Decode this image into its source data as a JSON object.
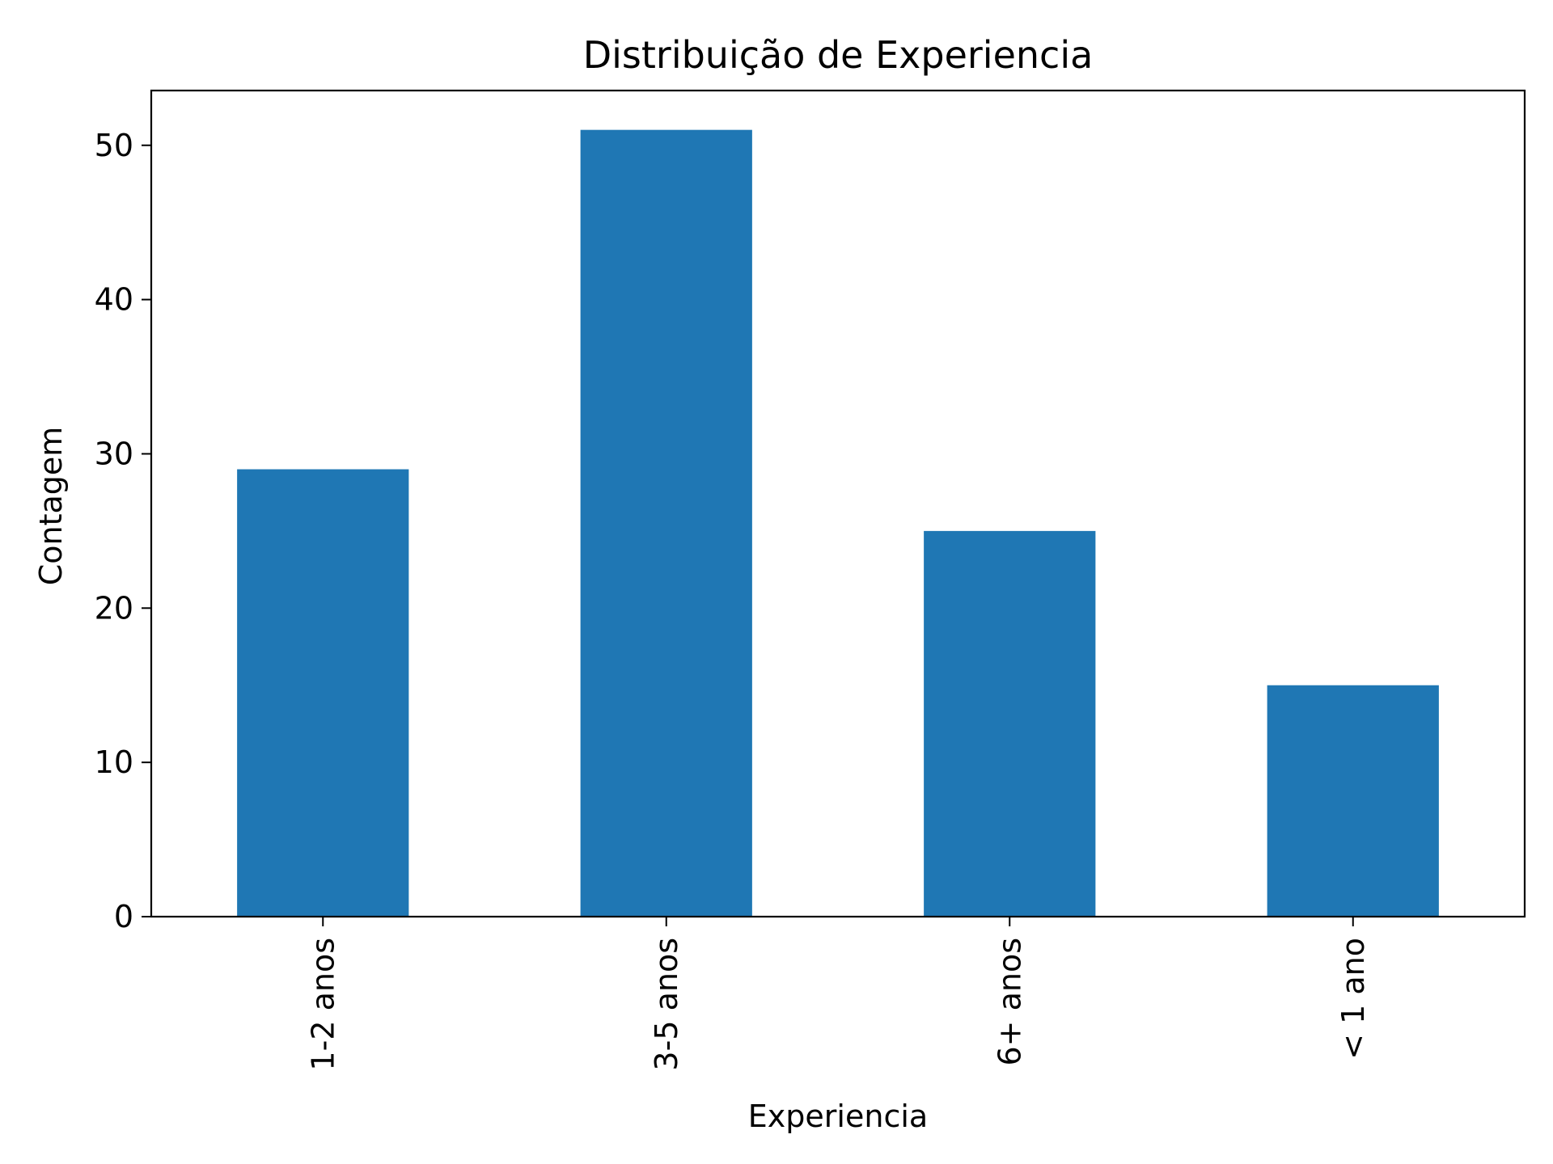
{
  "chart_data": {
    "type": "bar",
    "title": "Distribuição de Experiencia",
    "xlabel": "Experiencia",
    "ylabel": "Contagem",
    "categories": [
      "1-2 anos",
      "3-5 anos",
      "6+ anos",
      "< 1 ano"
    ],
    "values": [
      29,
      51,
      25,
      15
    ],
    "ylim": [
      0,
      53.55
    ],
    "yticks": [
      0,
      10,
      20,
      30,
      40,
      50
    ],
    "bar_color": "#1f77b4",
    "grid": false,
    "legend": "none"
  }
}
